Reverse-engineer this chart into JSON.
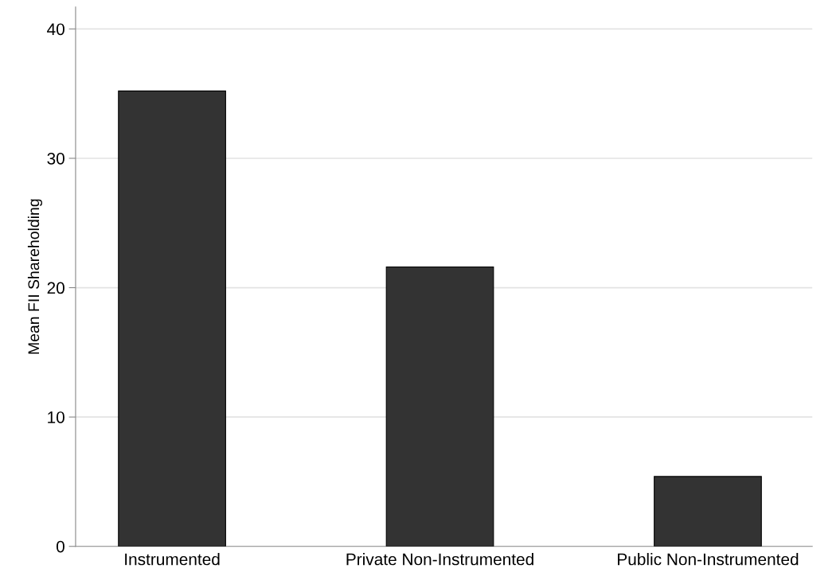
{
  "chart_data": {
    "type": "bar",
    "ylabel": "Mean FII Shareholding",
    "categories": [
      "Instrumented",
      "Private Non-Instrumented",
      "Public Non-Instrumented"
    ],
    "values": [
      35.2,
      21.6,
      5.4
    ],
    "color": "#333333",
    "ylim": [
      0,
      41.7
    ],
    "yticks": [
      0,
      10,
      20,
      30,
      40
    ],
    "grid": "y"
  }
}
